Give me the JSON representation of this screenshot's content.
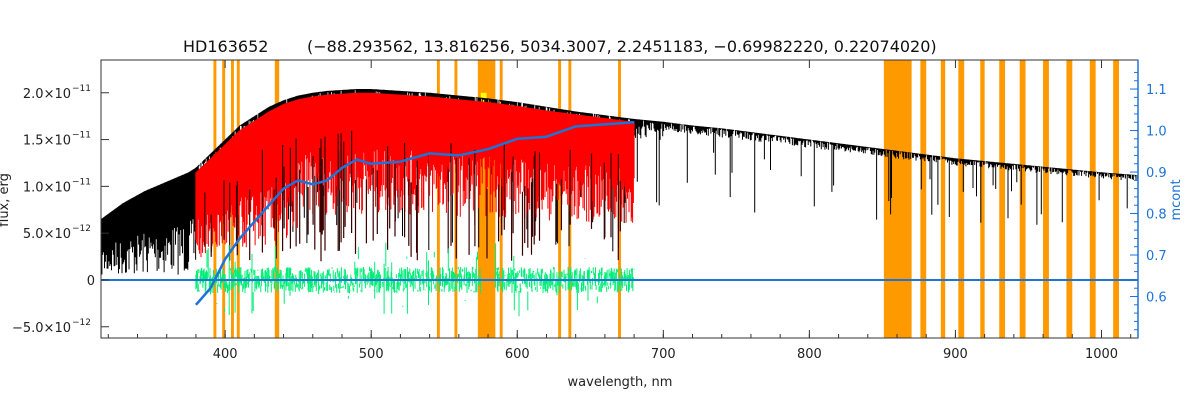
{
  "chart_data": {
    "type": "line",
    "title": "HD163652",
    "subtitle": "(−88.293562, 13.816256, 5034.3007, 2.2451183, −0.69982220, 0.22074020)",
    "xlabel": "wavelength, nm",
    "ylabel": "flux, erg",
    "y2label": "mcont",
    "xlim": [
      315,
      1025
    ],
    "ylim": [
      -6.2e-12,
      2.35e-11
    ],
    "y2lim": [
      0.5,
      1.17
    ],
    "grid": false,
    "x_ticks": [
      400,
      500,
      600,
      700,
      800,
      900,
      1000
    ],
    "x_tick_labels": [
      "400",
      "500",
      "600",
      "700",
      "800",
      "900",
      "1000"
    ],
    "y_ticks": [
      -5e-12,
      0,
      5e-12,
      1e-11,
      1.5e-11,
      2e-11
    ],
    "y_tick_labels": [
      {
        "mant": "−5.0×10",
        "exp": "−12"
      },
      {
        "mant": "0",
        "exp": ""
      },
      {
        "mant": "5.0×10",
        "exp": "−12"
      },
      {
        "mant": "1.0×10",
        "exp": "−11"
      },
      {
        "mant": "1.5×10",
        "exp": "−11"
      },
      {
        "mant": "2.0×10",
        "exp": "−11"
      }
    ],
    "y2_ticks": [
      0.6,
      0.7,
      0.8,
      0.9,
      1.0,
      1.1
    ],
    "y2_tick_labels": [
      "0.6",
      "0.7",
      "0.8",
      "0.9",
      "1.0",
      "1.1"
    ],
    "series": [
      {
        "color": "#000000",
        "x": [
          315,
          330,
          345,
          360,
          375,
          380,
          390,
          400,
          410,
          420,
          430,
          440,
          450,
          460,
          470,
          480,
          490,
          500,
          520,
          540,
          560,
          580,
          600,
          620,
          640,
          660,
          680,
          700,
          720,
          740,
          760,
          780,
          800,
          820,
          840,
          850,
          860,
          880,
          900,
          920,
          940,
          960,
          980,
          1000,
          1025
        ],
        "y": [
          6.5e-12,
          8.2e-12,
          9.5e-12,
          1.05e-11,
          1.15e-11,
          1.2e-11,
          1.35e-11,
          1.5e-11,
          1.65e-11,
          1.75e-11,
          1.85e-11,
          1.92e-11,
          1.97e-11,
          2e-11,
          2.02e-11,
          2.03e-11,
          2.04e-11,
          2.04e-11,
          2.02e-11,
          2e-11,
          1.97e-11,
          1.94e-11,
          1.9e-11,
          1.85e-11,
          1.8e-11,
          1.76e-11,
          1.72e-11,
          1.69e-11,
          1.65e-11,
          1.62e-11,
          1.58e-11,
          1.54e-11,
          1.5e-11,
          1.46e-11,
          1.42e-11,
          1.4e-11,
          1.38e-11,
          1.34e-11,
          1.3e-11,
          1.27e-11,
          1.24e-11,
          1.21e-11,
          1.18e-11,
          1.15e-11,
          1.12e-11
        ]
      },
      {
        "color": "#ff0000",
        "x": [
          380,
          390,
          400,
          410,
          420,
          430,
          440,
          450,
          460,
          470,
          480,
          490,
          500,
          520,
          540,
          560,
          580,
          600,
          620,
          640,
          660,
          680
        ],
        "y": [
          1.15e-11,
          1.3e-11,
          1.45e-11,
          1.6e-11,
          1.7e-11,
          1.8e-11,
          1.88e-11,
          1.93e-11,
          1.96e-11,
          1.98e-11,
          1.99e-11,
          2e-11,
          2e-11,
          1.98e-11,
          1.96e-11,
          1.93e-11,
          1.9e-11,
          1.86e-11,
          1.81e-11,
          1.77e-11,
          1.73e-11,
          1.69e-11
        ]
      },
      {
        "color": "#00ee77",
        "x": [
          380,
          400,
          420,
          440,
          460,
          480,
          500,
          520,
          540,
          560,
          575,
          585,
          600,
          620,
          640,
          660,
          680
        ],
        "y": [
          0,
          0,
          0,
          0,
          0,
          0,
          0,
          0,
          0,
          0,
          0,
          0,
          0,
          0,
          0,
          0,
          0
        ]
      },
      {
        "color": "#1e73d8",
        "axis": "right",
        "x": [
          380,
          390,
          400,
          410,
          420,
          430,
          440,
          450,
          460,
          470,
          480,
          490,
          500,
          520,
          540,
          560,
          580,
          600,
          620,
          640,
          660,
          680
        ],
        "y": [
          0.58,
          0.62,
          0.69,
          0.74,
          0.78,
          0.82,
          0.86,
          0.88,
          0.87,
          0.88,
          0.91,
          0.93,
          0.92,
          0.925,
          0.945,
          0.94,
          0.955,
          0.98,
          0.985,
          1.01,
          1.015,
          1.02
        ]
      },
      {
        "color": "#1e73d8",
        "x": [
          315,
          380,
          680,
          1025
        ],
        "y": [
          0,
          0,
          0,
          0
        ]
      }
    ],
    "masks": [
      [
        392,
        394
      ],
      [
        398,
        400
      ],
      [
        404,
        406
      ],
      [
        408,
        410
      ],
      [
        434,
        437
      ],
      [
        545,
        547
      ],
      [
        557,
        559
      ],
      [
        573,
        585
      ],
      [
        588,
        590
      ],
      [
        628,
        630
      ],
      [
        635,
        637
      ],
      [
        669,
        671
      ],
      [
        851,
        870
      ],
      [
        876,
        880
      ],
      [
        890,
        893
      ],
      [
        902,
        906
      ],
      [
        917,
        920
      ],
      [
        930,
        934
      ],
      [
        944,
        948
      ],
      [
        960,
        964
      ],
      [
        976,
        980
      ],
      [
        992,
        996
      ],
      [
        1008,
        1012
      ]
    ],
    "mask_color": "#ff9900",
    "highlight_color": "#ffff00"
  }
}
